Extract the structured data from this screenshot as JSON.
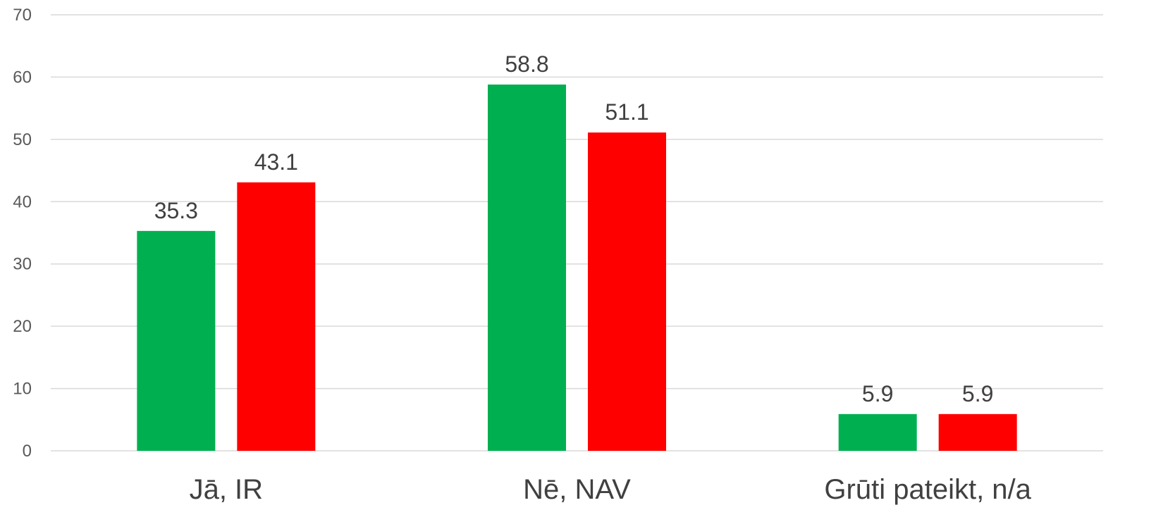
{
  "chart_data": {
    "type": "bar",
    "title": "",
    "xlabel": "",
    "ylabel": "",
    "categories": [
      "Jā, IR",
      "Nē, NAV",
      "Grūti pateikt, n/a"
    ],
    "series": [
      {
        "values": [
          35.3,
          58.8,
          5.9
        ],
        "color": "#00b050"
      },
      {
        "values": [
          43.1,
          51.1,
          5.9
        ],
        "color": "#ff0000"
      }
    ],
    "data_labels": [
      [
        "35.3",
        "58.8",
        "5.9"
      ],
      [
        "43.1",
        "51.1",
        "5.9"
      ]
    ],
    "ylim": [
      0,
      70
    ],
    "yticks": [
      0,
      10,
      20,
      30,
      40,
      50,
      60,
      70
    ],
    "ytick_labels": [
      "0",
      "10",
      "20",
      "30",
      "40",
      "50",
      "60",
      "70"
    ],
    "grid": true,
    "legend": "none"
  }
}
